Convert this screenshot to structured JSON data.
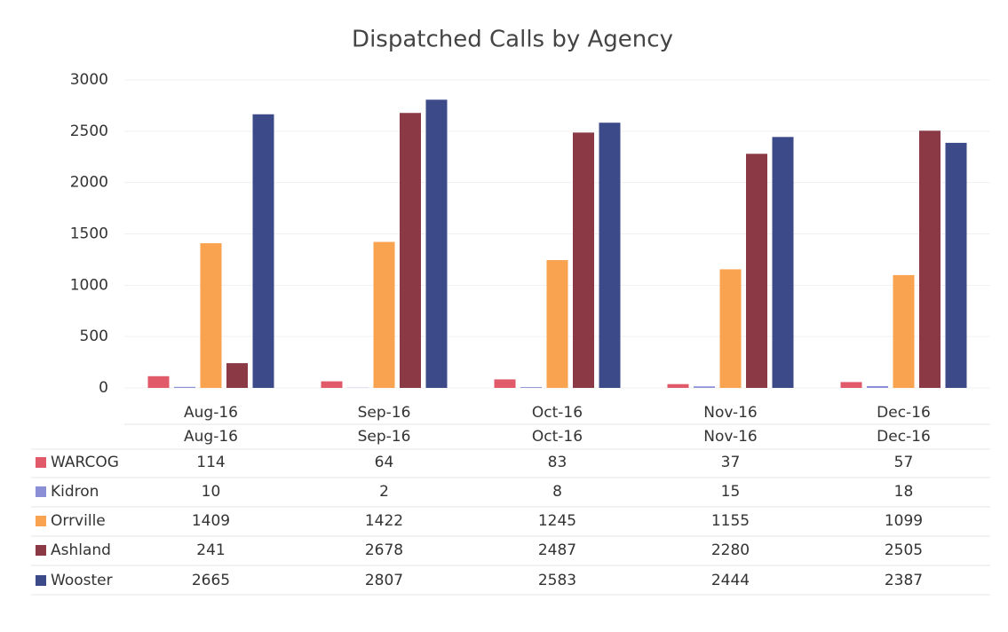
{
  "chart_data": {
    "type": "bar",
    "title": "Dispatched Calls by Agency",
    "categories": [
      "Aug-16",
      "Sep-16",
      "Oct-16",
      "Nov-16",
      "Dec-16"
    ],
    "series": [
      {
        "name": "WARCOG",
        "color": "#e05a6a",
        "values": [
          114,
          64,
          83,
          37,
          57
        ]
      },
      {
        "name": "Kidron",
        "color": "#8a8fd6",
        "values": [
          10,
          2,
          8,
          15,
          18
        ]
      },
      {
        "name": "Orrville",
        "color": "#f9a24f",
        "values": [
          1409,
          1422,
          1245,
          1155,
          1099
        ]
      },
      {
        "name": "Ashland",
        "color": "#8b3a45",
        "values": [
          241,
          2678,
          2487,
          2280,
          2505
        ]
      },
      {
        "name": "Wooster",
        "color": "#3d4a8a",
        "values": [
          2665,
          2807,
          2583,
          2444,
          2387
        ]
      }
    ],
    "ylim": [
      0,
      3000
    ],
    "yticks": [
      0,
      500,
      1000,
      1500,
      2000,
      2500,
      3000
    ],
    "grid": true
  }
}
